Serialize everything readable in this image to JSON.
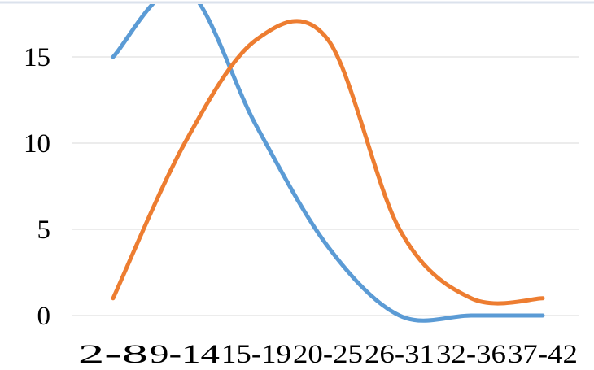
{
  "chart_data": {
    "type": "line",
    "smooth": true,
    "categories": [
      "2-8",
      "9-14",
      "15-19",
      "20-25",
      "26-31",
      "32-36",
      "37-42"
    ],
    "series": [
      {
        "values": [
          15,
          19,
          11,
          4,
          0,
          0,
          0
        ],
        "color": "#5b9bd5"
      },
      {
        "values": [
          1,
          10,
          16,
          16,
          5,
          1,
          1
        ],
        "color": "#ed7d31"
      }
    ],
    "y_ticks": [
      0,
      5,
      10,
      15
    ],
    "ylim": [
      0,
      17.4
    ],
    "grid": true,
    "legend": "none",
    "title": "",
    "xlabel": "",
    "ylabel": ""
  }
}
